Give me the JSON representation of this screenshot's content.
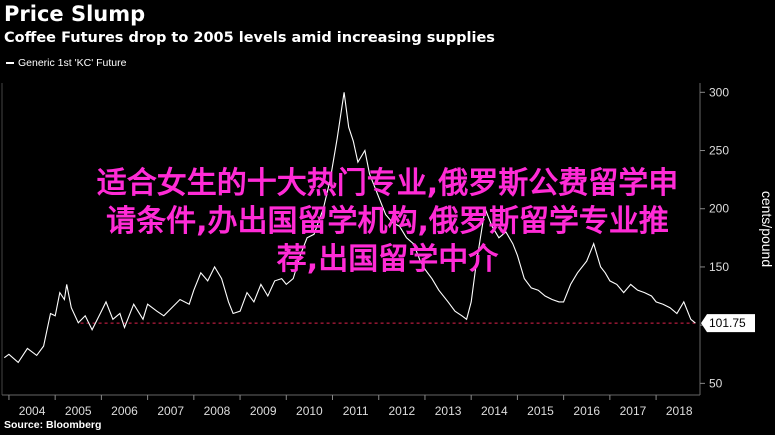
{
  "title": "Price Slump",
  "subtitle": "Coffee Futures drop to 2005 levels amid increasing supplies",
  "source": "Source: Bloomberg",
  "overlay_text": "适合女生的十大热门专业,俄罗斯公费留学申\n请条件,办出国留学机构,俄罗斯留学专业推\n荐,出国留学中介",
  "colors": {
    "background": "#000000",
    "line": "#ffffff",
    "reference": "#e0234e",
    "overlay": "#ff2bd6"
  },
  "chart_data": {
    "type": "line",
    "title": "Price Slump",
    "subtitle": "Coffee Futures drop to 2005 levels amid increasing supplies",
    "xlabel": "",
    "ylabel": "cents/pound",
    "xlim": [
      2003.85,
      2018.95
    ],
    "ylim": [
      40,
      308
    ],
    "x_ticks": [
      "2004",
      "2005",
      "2006",
      "2007",
      "2008",
      "2009",
      "2010",
      "2011",
      "2012",
      "2013",
      "2014",
      "2015",
      "2016",
      "2017",
      "2018"
    ],
    "y_ticks": [
      50,
      100,
      150,
      200,
      250,
      300
    ],
    "y_axis_position": "right",
    "grid": false,
    "legend": "top-left",
    "last_value_label": "101.75",
    "reference_line": 101.75,
    "series": [
      {
        "name": "Generic 1st 'KC' Future",
        "x": [
          2003.9,
          2004.0,
          2004.2,
          2004.4,
          2004.6,
          2004.75,
          2004.9,
          2005.0,
          2005.1,
          2005.2,
          2005.25,
          2005.35,
          2005.5,
          2005.65,
          2005.8,
          2006.0,
          2006.1,
          2006.25,
          2006.4,
          2006.5,
          2006.7,
          2006.9,
          2007.0,
          2007.2,
          2007.35,
          2007.5,
          2007.7,
          2007.9,
          2008.0,
          2008.15,
          2008.3,
          2008.45,
          2008.6,
          2008.75,
          2008.85,
          2009.0,
          2009.15,
          2009.3,
          2009.45,
          2009.6,
          2009.75,
          2009.9,
          2010.0,
          2010.15,
          2010.3,
          2010.45,
          2010.6,
          2010.8,
          2010.95,
          2011.1,
          2011.25,
          2011.35,
          2011.45,
          2011.55,
          2011.7,
          2011.8,
          2011.9,
          2012.0,
          2012.15,
          2012.3,
          2012.45,
          2012.6,
          2012.75,
          2012.9,
          2013.0,
          2013.15,
          2013.3,
          2013.5,
          2013.65,
          2013.8,
          2013.9,
          2014.0,
          2014.1,
          2014.2,
          2014.3,
          2014.45,
          2014.6,
          2014.75,
          2014.9,
          2015.0,
          2015.15,
          2015.3,
          2015.45,
          2015.6,
          2015.75,
          2015.9,
          2016.0,
          2016.15,
          2016.3,
          2016.5,
          2016.65,
          2016.8,
          2016.9,
          2017.0,
          2017.15,
          2017.3,
          2017.45,
          2017.6,
          2017.75,
          2017.9,
          2018.0,
          2018.15,
          2018.3,
          2018.45,
          2018.6,
          2018.75,
          2018.85
        ],
        "values": [
          72,
          75,
          68,
          80,
          74,
          82,
          110,
          108,
          128,
          122,
          135,
          115,
          102,
          108,
          96,
          112,
          120,
          105,
          110,
          98,
          118,
          105,
          118,
          112,
          108,
          114,
          122,
          118,
          130,
          145,
          138,
          150,
          140,
          120,
          110,
          112,
          128,
          120,
          135,
          125,
          138,
          140,
          135,
          140,
          160,
          175,
          178,
          200,
          225,
          260,
          300,
          270,
          258,
          240,
          250,
          230,
          220,
          210,
          195,
          188,
          185,
          175,
          170,
          155,
          148,
          140,
          130,
          120,
          112,
          108,
          105,
          120,
          150,
          175,
          200,
          185,
          175,
          180,
          170,
          160,
          140,
          132,
          130,
          125,
          122,
          120,
          120,
          135,
          145,
          155,
          170,
          150,
          145,
          138,
          135,
          128,
          135,
          130,
          128,
          125,
          120,
          118,
          115,
          110,
          120,
          105,
          101.75
        ]
      }
    ]
  }
}
